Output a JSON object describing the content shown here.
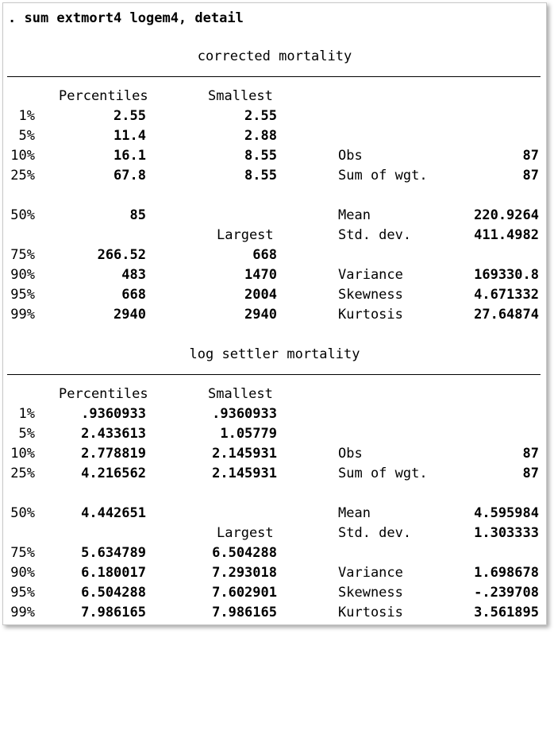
{
  "command": ". sum extmort4 logem4, detail",
  "sections": [
    {
      "title": "corrected mortality",
      "percentiles_header": "Percentiles",
      "smallest_header": "Smallest",
      "largest_header": "Largest",
      "low": [
        {
          "pct": "1%",
          "value": "2.55",
          "smallest": "2.55"
        },
        {
          "pct": "5%",
          "value": "11.4",
          "smallest": "2.88"
        },
        {
          "pct": "10%",
          "value": "16.1",
          "smallest": "8.55",
          "stat": "Obs",
          "stat_value": "87"
        },
        {
          "pct": "25%",
          "value": "67.8",
          "smallest": "8.55",
          "stat": "Sum of wgt.",
          "stat_value": "87"
        }
      ],
      "median": {
        "pct": "50%",
        "value": "85",
        "stat": "Mean",
        "stat_value": "220.9264"
      },
      "largest_row": {
        "stat": "Std. dev.",
        "stat_value": "411.4982"
      },
      "high": [
        {
          "pct": "75%",
          "value": "266.52",
          "largest": "668"
        },
        {
          "pct": "90%",
          "value": "483",
          "largest": "1470",
          "stat": "Variance",
          "stat_value": "169330.8"
        },
        {
          "pct": "95%",
          "value": "668",
          "largest": "2004",
          "stat": "Skewness",
          "stat_value": "4.671332"
        },
        {
          "pct": "99%",
          "value": "2940",
          "largest": "2940",
          "stat": "Kurtosis",
          "stat_value": "27.64874"
        }
      ]
    },
    {
      "title": "log settler mortality",
      "percentiles_header": "Percentiles",
      "smallest_header": "Smallest",
      "largest_header": "Largest",
      "low": [
        {
          "pct": "1%",
          "value": ".9360933",
          "smallest": ".9360933"
        },
        {
          "pct": "5%",
          "value": "2.433613",
          "smallest": "1.05779"
        },
        {
          "pct": "10%",
          "value": "2.778819",
          "smallest": "2.145931",
          "stat": "Obs",
          "stat_value": "87"
        },
        {
          "pct": "25%",
          "value": "4.216562",
          "smallest": "2.145931",
          "stat": "Sum of wgt.",
          "stat_value": "87"
        }
      ],
      "median": {
        "pct": "50%",
        "value": "4.442651",
        "stat": "Mean",
        "stat_value": "4.595984"
      },
      "largest_row": {
        "stat": "Std. dev.",
        "stat_value": "1.303333"
      },
      "high": [
        {
          "pct": "75%",
          "value": "5.634789",
          "largest": "6.504288"
        },
        {
          "pct": "90%",
          "value": "6.180017",
          "largest": "7.293018",
          "stat": "Variance",
          "stat_value": "1.698678"
        },
        {
          "pct": "95%",
          "value": "6.504288",
          "largest": "7.602901",
          "stat": "Skewness",
          "stat_value": "-.239708"
        },
        {
          "pct": "99%",
          "value": "7.986165",
          "largest": "7.986165",
          "stat": "Kurtosis",
          "stat_value": "3.561895"
        }
      ]
    }
  ]
}
